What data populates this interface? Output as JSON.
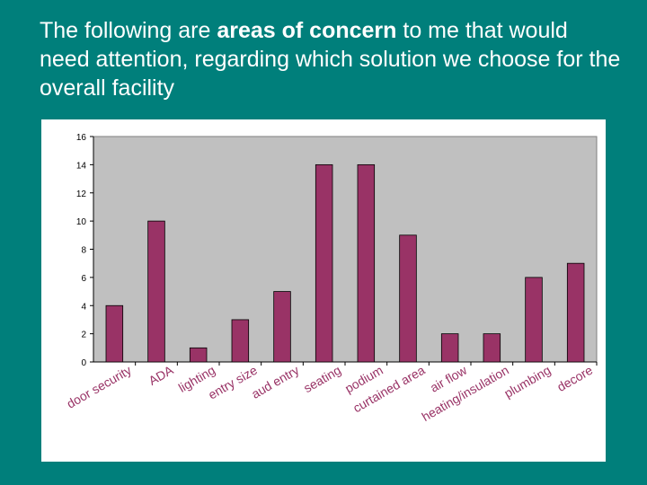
{
  "slide": {
    "title_parts": [
      {
        "text": "The following are ",
        "bold": false
      },
      {
        "text": "areas of concern",
        "bold": true
      },
      {
        "text": " to me that would need attention, regarding which solution we choose for the overall facility",
        "bold": false
      }
    ]
  },
  "colors": {
    "background": "#007f7b",
    "plot_area": "#c0c0c0",
    "bar": "#993366",
    "panel": "#ffffff"
  },
  "chart_data": {
    "type": "bar",
    "title": "",
    "xlabel": "",
    "ylabel": "",
    "categories": [
      "door security",
      "ADA",
      "lighting",
      "entry size",
      "aud entry",
      "seating",
      "podium",
      "curtained area",
      "air flow",
      "heating/insulation",
      "plumbing",
      "decore"
    ],
    "values": [
      4,
      10,
      1,
      3,
      5,
      14,
      14,
      9,
      2,
      2,
      6,
      7
    ],
    "ylim": [
      0,
      16
    ],
    "yticks": [
      0,
      2,
      4,
      6,
      8,
      10,
      12,
      14,
      16
    ],
    "grid": false,
    "legend": "none"
  }
}
